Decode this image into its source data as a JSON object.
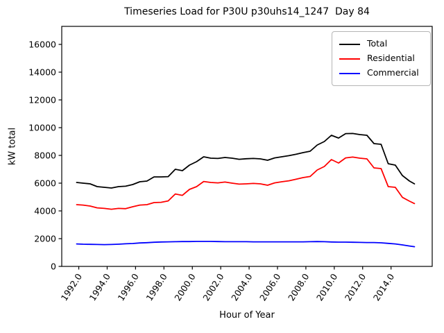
{
  "chart_data": {
    "type": "line",
    "title": "Timeseries Load for P30U p30uhs14_1247  Day 84",
    "xlabel": "Hour of Year",
    "ylabel": "kW total",
    "xlim": [
      1990.8,
      2016.9
    ],
    "ylim": [
      0,
      17300
    ],
    "xticks": [
      1992,
      1994,
      1996,
      1998,
      2000,
      2002,
      2004,
      2006,
      2008,
      2010,
      2012,
      2014
    ],
    "xtick_labels": [
      "1992.0",
      "1994.0",
      "1996.0",
      "1998.0",
      "2000.0",
      "2002.0",
      "2004.0",
      "2006.0",
      "2008.0",
      "2010.0",
      "2012.0",
      "2014.0"
    ],
    "yticks": [
      0,
      2000,
      4000,
      6000,
      8000,
      10000,
      12000,
      14000,
      16000
    ],
    "ytick_labels": [
      "0",
      "2000",
      "4000",
      "6000",
      "8000",
      "10000",
      "12000",
      "14000",
      "16000"
    ],
    "x_tick_rotation": 57,
    "grid": false,
    "legend_position": "upper right",
    "x": [
      1991.85,
      1992.3,
      1992.8,
      1993.3,
      1993.8,
      1994.3,
      1994.8,
      1995.3,
      1995.8,
      1996.3,
      1996.8,
      1997.3,
      1997.8,
      1998.3,
      1998.8,
      1999.3,
      1999.8,
      2000.3,
      2000.8,
      2001.3,
      2001.8,
      2002.3,
      2002.8,
      2003.3,
      2003.8,
      2004.3,
      2004.8,
      2005.3,
      2005.8,
      2006.3,
      2006.8,
      2007.3,
      2007.8,
      2008.3,
      2008.8,
      2009.3,
      2009.8,
      2010.3,
      2010.8,
      2011.3,
      2011.8,
      2012.3,
      2012.8,
      2013.3,
      2013.8,
      2014.3,
      2014.8,
      2015.3,
      2015.65
    ],
    "series": [
      {
        "name": "Total",
        "color": "#000000",
        "values": [
          6050,
          6000,
          5950,
          5750,
          5700,
          5650,
          5750,
          5780,
          5900,
          6100,
          6150,
          6450,
          6450,
          6470,
          7000,
          6900,
          7300,
          7550,
          7900,
          7800,
          7780,
          7850,
          7800,
          7720,
          7760,
          7780,
          7750,
          7650,
          7820,
          7900,
          7980,
          8080,
          8200,
          8300,
          8750,
          9000,
          9450,
          9250,
          9570,
          9580,
          9500,
          9450,
          8850,
          8800,
          7400,
          7300,
          6550,
          6150,
          5950
        ]
      },
      {
        "name": "Residential",
        "color": "#ff0000",
        "values": [
          4450,
          4420,
          4350,
          4220,
          4180,
          4120,
          4180,
          4160,
          4300,
          4420,
          4450,
          4600,
          4620,
          4720,
          5220,
          5120,
          5550,
          5750,
          6120,
          6050,
          6020,
          6080,
          6000,
          5930,
          5950,
          5980,
          5950,
          5850,
          6020,
          6100,
          6170,
          6280,
          6400,
          6480,
          6950,
          7200,
          7700,
          7450,
          7820,
          7880,
          7800,
          7750,
          7100,
          7050,
          5750,
          5700,
          4980,
          4700,
          4530
        ]
      },
      {
        "name": "Commercial",
        "color": "#0000ff",
        "values": [
          1620,
          1600,
          1590,
          1580,
          1570,
          1580,
          1600,
          1630,
          1650,
          1690,
          1710,
          1740,
          1760,
          1770,
          1780,
          1790,
          1790,
          1800,
          1800,
          1800,
          1790,
          1780,
          1780,
          1780,
          1780,
          1770,
          1770,
          1770,
          1770,
          1770,
          1770,
          1770,
          1770,
          1780,
          1790,
          1780,
          1760,
          1750,
          1750,
          1740,
          1730,
          1720,
          1720,
          1700,
          1660,
          1620,
          1550,
          1470,
          1420
        ]
      }
    ]
  }
}
